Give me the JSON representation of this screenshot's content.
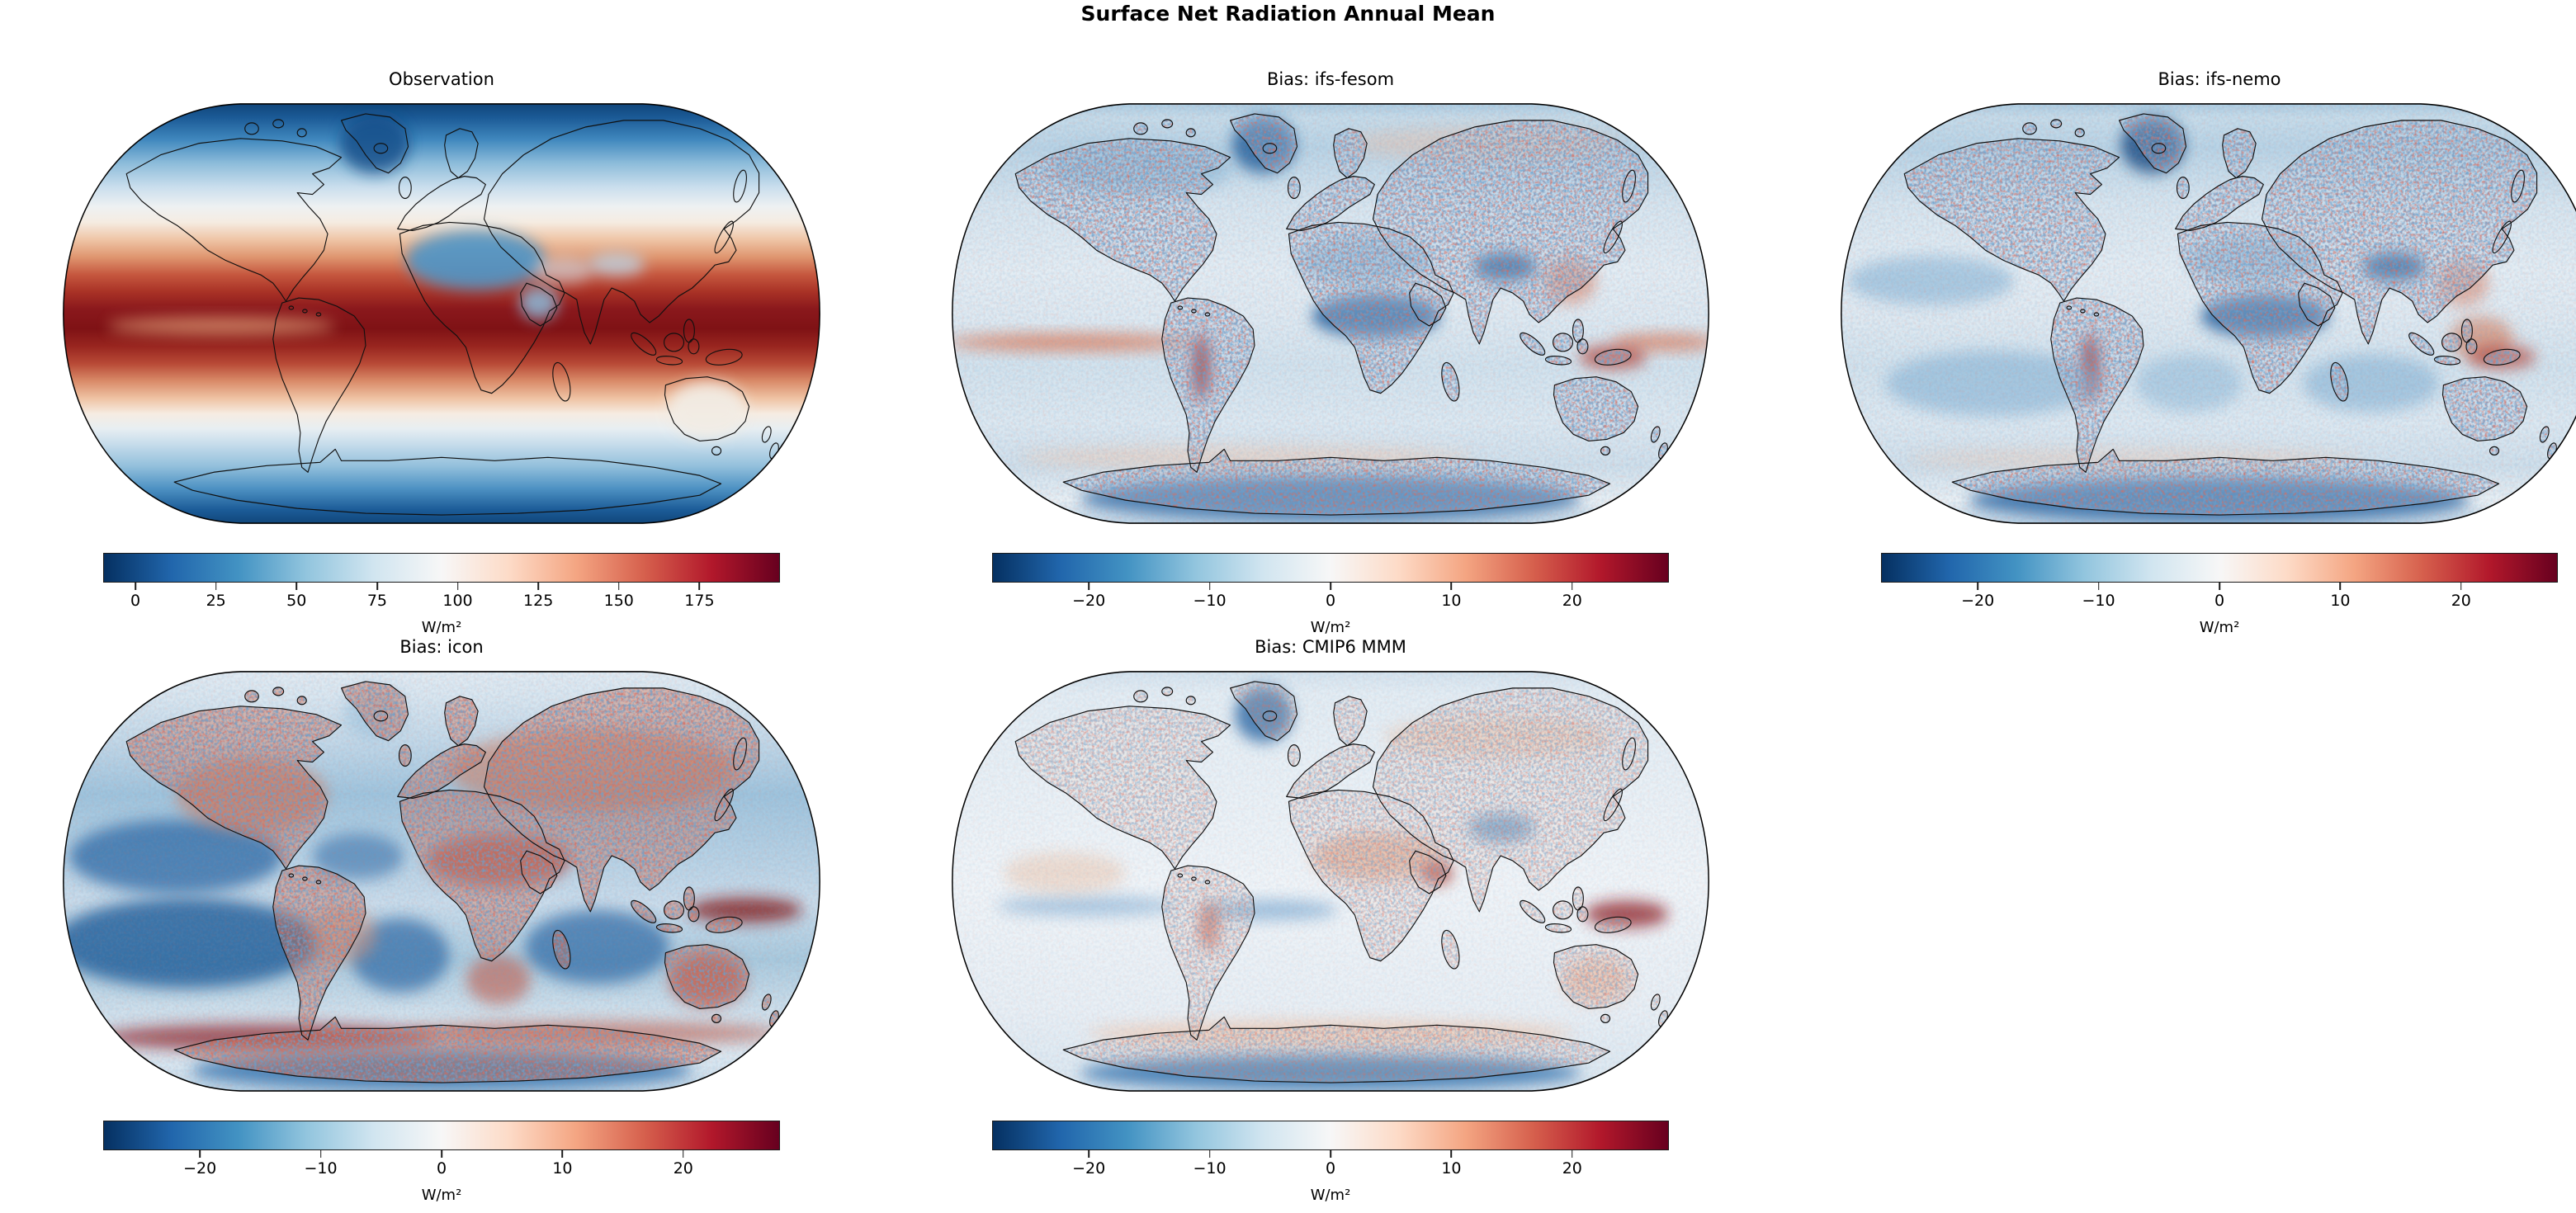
{
  "figure_title": "Surface Net Radiation Annual Mean",
  "colormap": {
    "name": "RdBu_r",
    "stops": [
      "#053061",
      "#2166ac",
      "#4393c3",
      "#92c5de",
      "#d1e5f0",
      "#f7f7f7",
      "#fddbc7",
      "#f4a582",
      "#d6604d",
      "#b2182b",
      "#67001f"
    ]
  },
  "chart_data": {
    "type": "heatmap",
    "projection": "Robinson",
    "layout": "2 rows x 3 columns grid, 5 filled map panels, bottom-right cell empty",
    "grid_on": false,
    "panels": [
      {
        "id": "observation",
        "title": "Observation",
        "kind": "absolute-field",
        "colorbar": {
          "tick_values": [
            0,
            25,
            50,
            75,
            100,
            125,
            150,
            175
          ],
          "tick_labels": [
            "0",
            "25",
            "50",
            "75",
            "100",
            "125",
            "150",
            "175"
          ],
          "vmin": -10,
          "vmax": 200,
          "unit": "W/m²",
          "orientation": "horizontal"
        },
        "summary": "Observed annual-mean surface net radiation: ~170-195 W/m² in a dark-red belt across the tropics (strongest just south of the equator), ~80-110 W/m² (white) near 40°N/45°S, near/below 0 W/m² (dark blue) at both poles, Greenland and Antarctica; the Sahara and Arabia appear anomalously low (~25-60 W/m², blue) relative to their latitude; Australia pale (~90-110 W/m²)."
      },
      {
        "id": "bias-ifs-fesom",
        "title": "Bias: ifs-fesom",
        "kind": "bias-field",
        "colorbar": {
          "tick_values": [
            -20,
            -10,
            0,
            10,
            20
          ],
          "tick_labels": [
            "−20",
            "−10",
            "0",
            "10",
            "20"
          ],
          "vmin": -28,
          "vmax": 28,
          "unit": "W/m²",
          "orientation": "horizontal"
        },
        "summary": "Mostly weak negative bias (light blue, −2 to −10 W/m²) over the oceans; strong negative bias (−15 to −25) over the Sahel, central Africa, Tibet, Greenland and Antarctica; speckled ±15 noise over land; positive bias streak (+10 to +25) along the equatorial east Pacific and dark red along the Peru coast; red patches over east China and New Guinea."
      },
      {
        "id": "bias-ifs-nemo",
        "title": "Bias: ifs-nemo",
        "kind": "bias-field",
        "colorbar": {
          "tick_values": [
            -20,
            -10,
            0,
            10,
            20
          ],
          "tick_labels": [
            "−20",
            "−10",
            "0",
            "10",
            "20"
          ],
          "vmin": -28,
          "vmax": 28,
          "unit": "W/m²",
          "orientation": "horizontal"
        },
        "summary": "Pattern similar to ifs-fesom: light-blue negative bias over most oceans with darker subtropical patches; strong negative bias over Sahara/Sahel, Tibet, Greenland, Antarctica; speckled land noise; dark-red positive bias at the Peru coast and around the Maritime Continent/Philippines; weaker equatorial Pacific red streak."
      },
      {
        "id": "bias-icon",
        "title": "Bias: icon",
        "kind": "bias-field",
        "colorbar": {
          "tick_values": [
            -20,
            -10,
            0,
            10,
            20
          ],
          "tick_labels": [
            "−20",
            "−10",
            "0",
            "10",
            "20"
          ],
          "vmin": -28,
          "vmax": 28,
          "unit": "W/m²",
          "orientation": "horizontal"
        },
        "summary": "Strong negative bias (dark blue, −15 to −25 W/m²) over subtropical oceans (south-east Pacific, south Atlantic, south Indian); widespread positive bias (red, +5 to +20) over most land: North America, Eurasia, Sahara/Arabia (darkest red), southern Africa, Australia; dark-red band (+20 to +28) along ~55-60°S in the Southern Ocean and east of New Guinea; Antarctica negative (blue)."
      },
      {
        "id": "bias-cmip6-mmm",
        "title": "Bias: CMIP6 MMM",
        "kind": "bias-field",
        "colorbar": {
          "tick_values": [
            -20,
            -10,
            0,
            10,
            20
          ],
          "tick_labels": [
            "−20",
            "−10",
            "0",
            "10",
            "20"
          ],
          "vmin": -28,
          "vmax": 28,
          "unit": "W/m²",
          "orientation": "horizontal"
        },
        "summary": "Weakest overall bias: pale field with light-blue oceans (−2 to −8 W/m²); moderate positive bias (salmon/red) over the Sahara, Arabia (dark red), Australia and parts of the Southern Ocean (~55°S); strong negative bias (dark blue) over Greenland, Tibet and coastal Antarctica; dark-red patch west-equatorial Pacific near New Guinea; blue streaks along the equatorial Atlantic and east Pacific."
      }
    ]
  }
}
